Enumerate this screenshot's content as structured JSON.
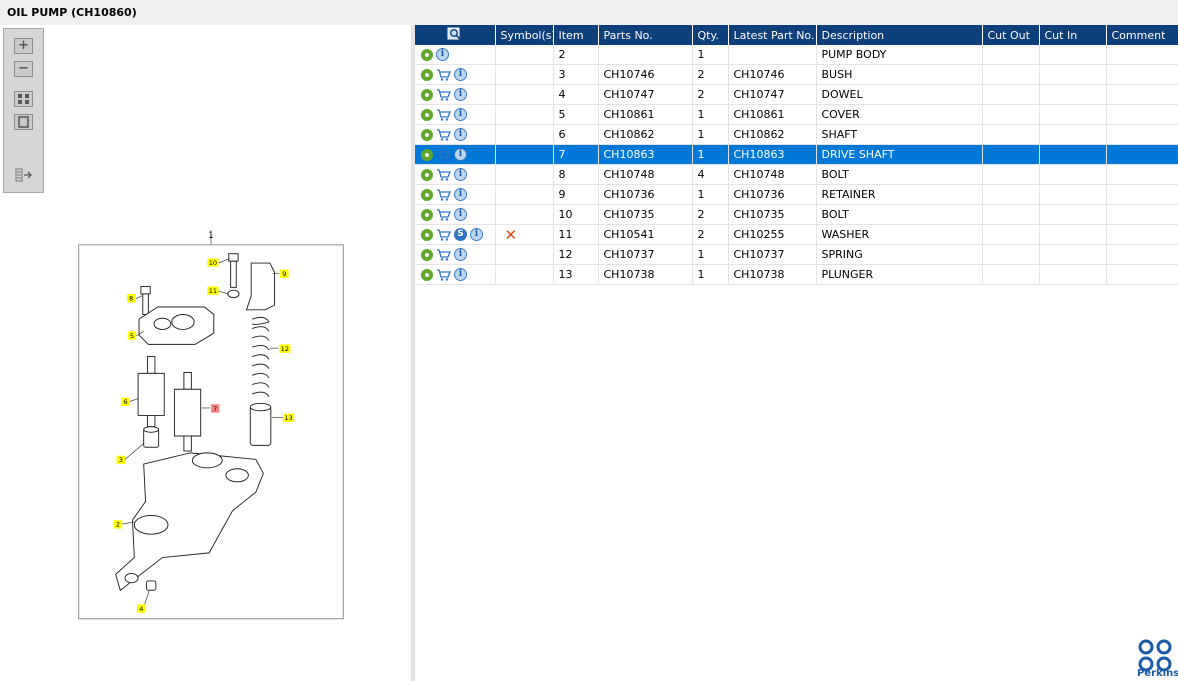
{
  "title": "OIL PUMP (CH10860)",
  "toolbar": {
    "zoom_in": "+",
    "zoom_out": "−"
  },
  "diagram": {
    "assembly_callout": "1",
    "callouts": [
      "10",
      "9",
      "8",
      "11",
      "5",
      "12",
      "6",
      "7",
      "13",
      "3",
      "2",
      "4"
    ],
    "highlighted_callout": "7"
  },
  "table": {
    "columns": [
      "Symbol(s)",
      "Item",
      "Parts No.",
      "Qty.",
      "Latest Part No.",
      "Description",
      "Cut Out",
      "Cut In",
      "Comment"
    ],
    "rows": [
      {
        "item": "2",
        "parts_no": "",
        "qty": "1",
        "latest": "",
        "description": "PUMP BODY",
        "cart": false,
        "symbol": false,
        "selected": false
      },
      {
        "item": "3",
        "parts_no": "CH10746",
        "qty": "2",
        "latest": "CH10746",
        "description": "BUSH",
        "cart": true,
        "symbol": false,
        "selected": false
      },
      {
        "item": "4",
        "parts_no": "CH10747",
        "qty": "2",
        "latest": "CH10747",
        "description": "DOWEL",
        "cart": true,
        "symbol": false,
        "selected": false
      },
      {
        "item": "5",
        "parts_no": "CH10861",
        "qty": "1",
        "latest": "CH10861",
        "description": "COVER",
        "cart": true,
        "symbol": false,
        "selected": false
      },
      {
        "item": "6",
        "parts_no": "CH10862",
        "qty": "1",
        "latest": "CH10862",
        "description": "SHAFT",
        "cart": true,
        "symbol": false,
        "selected": false
      },
      {
        "item": "7",
        "parts_no": "CH10863",
        "qty": "1",
        "latest": "CH10863",
        "description": "DRIVE SHAFT",
        "cart": true,
        "symbol": false,
        "selected": true
      },
      {
        "item": "8",
        "parts_no": "CH10748",
        "qty": "4",
        "latest": "CH10748",
        "description": "BOLT",
        "cart": true,
        "symbol": false,
        "selected": false
      },
      {
        "item": "9",
        "parts_no": "CH10736",
        "qty": "1",
        "latest": "CH10736",
        "description": "RETAINER",
        "cart": true,
        "symbol": false,
        "selected": false
      },
      {
        "item": "10",
        "parts_no": "CH10735",
        "qty": "2",
        "latest": "CH10735",
        "description": "BOLT",
        "cart": true,
        "symbol": false,
        "selected": false
      },
      {
        "item": "11",
        "parts_no": "CH10541",
        "qty": "2",
        "latest": "CH10255",
        "description": "WASHER",
        "cart": true,
        "symbol": true,
        "selected": false
      },
      {
        "item": "12",
        "parts_no": "CH10737",
        "qty": "1",
        "latest": "CH10737",
        "description": "SPRING",
        "cart": true,
        "symbol": false,
        "selected": false
      },
      {
        "item": "13",
        "parts_no": "CH10738",
        "qty": "1",
        "latest": "CH10738",
        "description": "PLUNGER",
        "cart": true,
        "symbol": false,
        "selected": false
      }
    ]
  },
  "symbol_letter": "S",
  "info_letter": "i",
  "brand": "Perkins",
  "colors": {
    "header": "#0d3f7b",
    "selected_row": "#0078d7",
    "gear": "#5fa82c",
    "callout": "#ffff00",
    "highlight_callout": "#ff8080"
  }
}
